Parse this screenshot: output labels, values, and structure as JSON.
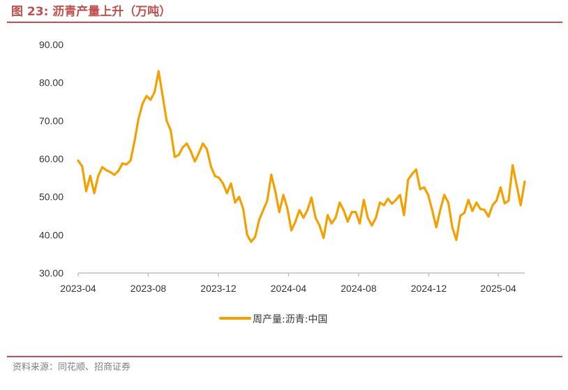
{
  "header": {
    "title": "图 23:  沥青产量上升（万吨）"
  },
  "footer": {
    "source": "资料来源：同花顺、招商证券"
  },
  "colors": {
    "accent": "#c0504d",
    "series": "#f4a000",
    "axis": "#bfbfbf"
  },
  "chart_data": {
    "type": "line",
    "title": "",
    "xlabel": "",
    "ylabel": "",
    "ylim": [
      30,
      90
    ],
    "yticks": [
      "30.00",
      "40.00",
      "50.00",
      "60.00",
      "70.00",
      "80.00",
      "90.00"
    ],
    "xticks": [
      "2023-04",
      "2023-08",
      "2023-12",
      "2024-04",
      "2024-08",
      "2024-12",
      "2025-04"
    ],
    "grid": false,
    "legend": "bottom-center",
    "series": [
      {
        "name": "周产量:沥青:中国",
        "color": "#f4a000",
        "points": [
          [
            "2023-04-01",
            59.5
          ],
          [
            "2023-04-08",
            58.0
          ],
          [
            "2023-04-15",
            51.5
          ],
          [
            "2023-04-22",
            55.5
          ],
          [
            "2023-04-29",
            51.0
          ],
          [
            "2023-05-06",
            55.5
          ],
          [
            "2023-05-13",
            57.8
          ],
          [
            "2023-05-20",
            57.0
          ],
          [
            "2023-05-27",
            56.5
          ],
          [
            "2023-06-03",
            55.8
          ],
          [
            "2023-06-10",
            56.8
          ],
          [
            "2023-06-17",
            58.8
          ],
          [
            "2023-06-24",
            58.5
          ],
          [
            "2023-07-01",
            59.5
          ],
          [
            "2023-07-08",
            64.5
          ],
          [
            "2023-07-15",
            70.5
          ],
          [
            "2023-07-22",
            74.5
          ],
          [
            "2023-07-29",
            76.5
          ],
          [
            "2023-08-05",
            75.5
          ],
          [
            "2023-08-12",
            77.5
          ],
          [
            "2023-08-19",
            83.0
          ],
          [
            "2023-08-26",
            76.5
          ],
          [
            "2023-09-02",
            70.0
          ],
          [
            "2023-09-09",
            67.5
          ],
          [
            "2023-09-16",
            60.5
          ],
          [
            "2023-09-23",
            61.0
          ],
          [
            "2023-09-30",
            63.0
          ],
          [
            "2023-10-07",
            64.0
          ],
          [
            "2023-10-14",
            62.0
          ],
          [
            "2023-10-21",
            59.3
          ],
          [
            "2023-10-28",
            61.5
          ],
          [
            "2023-11-04",
            64.0
          ],
          [
            "2023-11-11",
            62.5
          ],
          [
            "2023-11-18",
            58.0
          ],
          [
            "2023-11-25",
            55.5
          ],
          [
            "2023-12-02",
            55.0
          ],
          [
            "2023-12-09",
            53.5
          ],
          [
            "2023-12-16",
            51.0
          ],
          [
            "2023-12-23",
            53.5
          ],
          [
            "2023-12-30",
            48.5
          ],
          [
            "2024-01-06",
            50.0
          ],
          [
            "2024-01-13",
            47.0
          ],
          [
            "2024-01-20",
            40.0
          ],
          [
            "2024-01-27",
            38.2
          ],
          [
            "2024-02-03",
            39.5
          ],
          [
            "2024-02-10",
            44.0
          ],
          [
            "2024-02-17",
            46.5
          ],
          [
            "2024-02-24",
            49.0
          ],
          [
            "2024-03-02",
            55.8
          ],
          [
            "2024-03-09",
            51.5
          ],
          [
            "2024-03-16",
            46.0
          ],
          [
            "2024-03-23",
            50.5
          ],
          [
            "2024-03-30",
            47.0
          ],
          [
            "2024-04-06",
            41.2
          ],
          [
            "2024-04-13",
            43.5
          ],
          [
            "2024-04-20",
            46.5
          ],
          [
            "2024-04-27",
            44.5
          ],
          [
            "2024-05-04",
            46.5
          ],
          [
            "2024-05-11",
            49.8
          ],
          [
            "2024-05-18",
            44.5
          ],
          [
            "2024-05-25",
            42.5
          ],
          [
            "2024-06-01",
            39.2
          ],
          [
            "2024-06-08",
            45.2
          ],
          [
            "2024-06-15",
            43.0
          ],
          [
            "2024-06-22",
            44.5
          ],
          [
            "2024-06-29",
            48.5
          ],
          [
            "2024-07-06",
            46.5
          ],
          [
            "2024-07-13",
            43.5
          ],
          [
            "2024-07-20",
            46.0
          ],
          [
            "2024-07-27",
            46.0
          ],
          [
            "2024-08-03",
            43.0
          ],
          [
            "2024-08-10",
            49.2
          ],
          [
            "2024-08-17",
            44.5
          ],
          [
            "2024-08-24",
            42.5
          ],
          [
            "2024-08-31",
            44.5
          ],
          [
            "2024-09-07",
            48.5
          ],
          [
            "2024-09-14",
            47.8
          ],
          [
            "2024-09-21",
            49.5
          ],
          [
            "2024-09-28",
            48.2
          ],
          [
            "2024-10-05",
            49.2
          ],
          [
            "2024-10-12",
            50.5
          ],
          [
            "2024-10-19",
            45.2
          ],
          [
            "2024-10-26",
            54.5
          ],
          [
            "2024-11-02",
            56.0
          ],
          [
            "2024-11-09",
            57.2
          ],
          [
            "2024-11-16",
            52.0
          ],
          [
            "2024-11-23",
            52.5
          ],
          [
            "2024-11-30",
            50.5
          ],
          [
            "2024-12-07",
            46.5
          ],
          [
            "2024-12-14",
            42.0
          ],
          [
            "2024-12-21",
            46.5
          ],
          [
            "2024-12-28",
            50.5
          ],
          [
            "2025-01-04",
            48.5
          ],
          [
            "2025-01-11",
            42.0
          ],
          [
            "2025-01-18",
            38.7
          ],
          [
            "2025-01-25",
            45.0
          ],
          [
            "2025-02-01",
            45.8
          ],
          [
            "2025-02-08",
            49.2
          ],
          [
            "2025-02-15",
            46.3
          ],
          [
            "2025-02-22",
            48.5
          ],
          [
            "2025-03-01",
            46.8
          ],
          [
            "2025-03-08",
            46.6
          ],
          [
            "2025-03-15",
            44.8
          ],
          [
            "2025-03-22",
            47.8
          ],
          [
            "2025-03-29",
            49.0
          ],
          [
            "2025-04-05",
            52.5
          ],
          [
            "2025-04-12",
            48.3
          ],
          [
            "2025-04-19",
            49.0
          ],
          [
            "2025-04-26",
            58.3
          ],
          [
            "2025-05-03",
            53.0
          ],
          [
            "2025-05-10",
            47.8
          ],
          [
            "2025-05-17",
            54.0
          ]
        ]
      }
    ]
  }
}
